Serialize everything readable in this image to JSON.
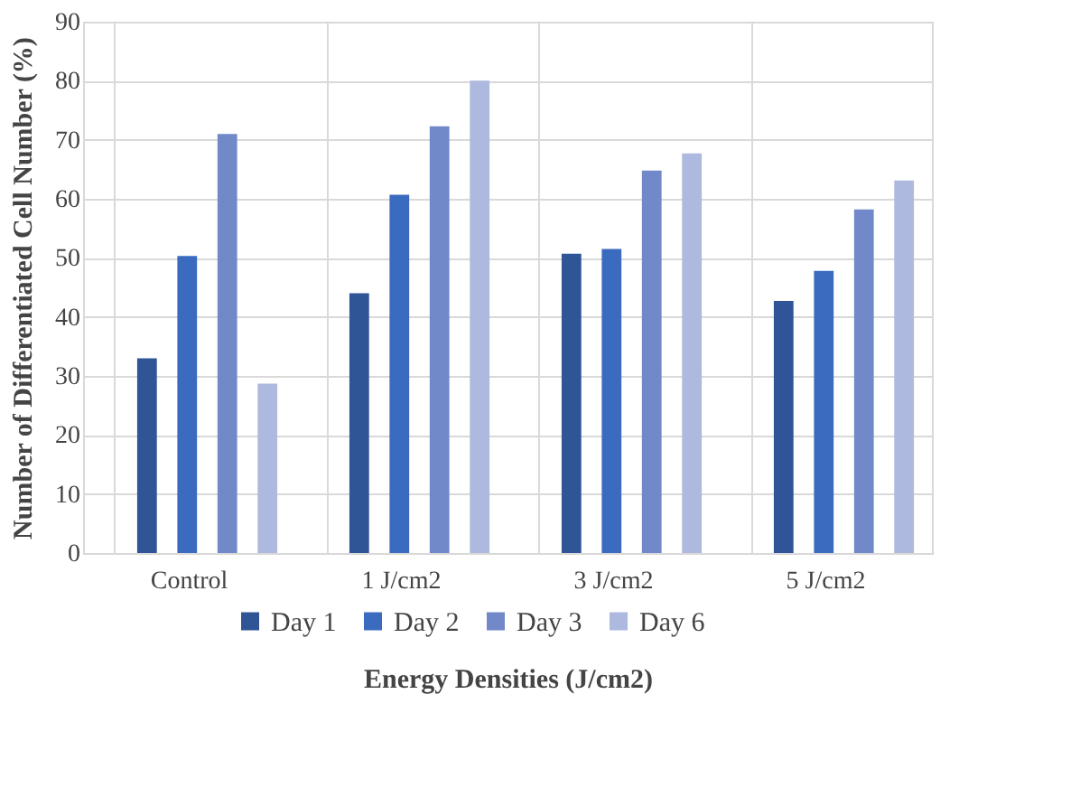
{
  "chart_data": {
    "type": "bar",
    "xlabel": "Energy Densities (J/cm2)",
    "ylabel": "Number of Differentiated Cell Number (%)",
    "categories": [
      "Control",
      "1 J/cm2",
      "3 J/cm2",
      "5 J/cm2"
    ],
    "series": [
      {
        "name": "Day 1",
        "color": "#2f5597",
        "values": [
          33,
          44,
          50.7,
          42.7
        ]
      },
      {
        "name": "Day 2",
        "color": "#3a6bbf",
        "values": [
          50.3,
          60.7,
          51.5,
          47.8
        ]
      },
      {
        "name": "Day 3",
        "color": "#7189c9",
        "values": [
          71,
          72.3,
          64.8,
          58.2
        ]
      },
      {
        "name": "Day 6",
        "color": "#adb9de",
        "values": [
          28.7,
          80,
          67.7,
          63.1
        ]
      }
    ],
    "ylim": [
      0,
      90
    ],
    "yticks": [
      0,
      10,
      20,
      30,
      40,
      50,
      60,
      70,
      80,
      90
    ],
    "grid": true,
    "legend": "bottom"
  }
}
